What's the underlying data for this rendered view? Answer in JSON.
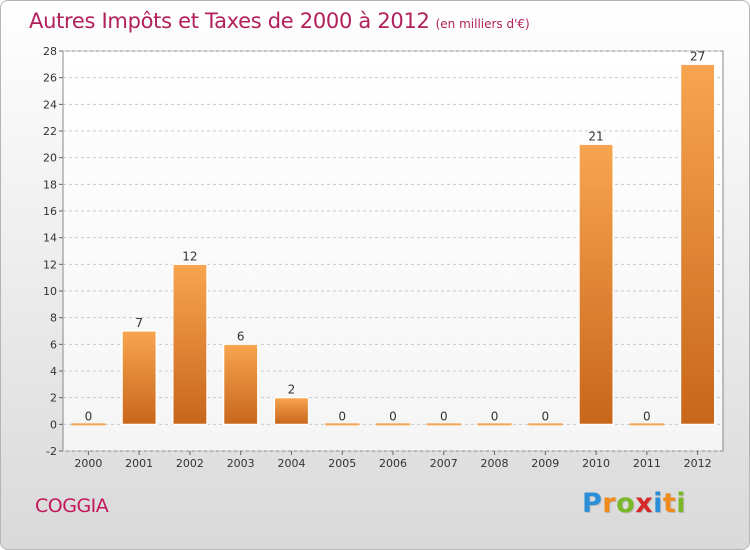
{
  "chart_data": {
    "type": "bar",
    "title": "Autres Impôts et Taxes de 2000 à 2012",
    "subtitle": "(en milliers d'€)",
    "categories": [
      "2000",
      "2001",
      "2002",
      "2003",
      "2004",
      "2005",
      "2006",
      "2007",
      "2008",
      "2009",
      "2010",
      "2011",
      "2012"
    ],
    "values": [
      0,
      7,
      12,
      6,
      2,
      0,
      0,
      0,
      0,
      0,
      21,
      0,
      27
    ],
    "data_labels": [
      "0",
      "7",
      "12",
      "6",
      "2",
      "0",
      "0",
      "0",
      "0",
      "0",
      "21",
      "0",
      "27"
    ],
    "ylim": [
      -2,
      28
    ],
    "yticks": [
      -2,
      0,
      2,
      4,
      6,
      8,
      10,
      12,
      14,
      16,
      18,
      20,
      22,
      24,
      26,
      28
    ],
    "grid": true,
    "bar_color_top": "#f7a550",
    "bar_color_bottom": "#c8661a"
  },
  "commune": "COGGIA",
  "logo": {
    "letters": [
      "P",
      "r",
      "o",
      "x",
      "i",
      "t",
      "i"
    ],
    "colors": [
      "#2a8fd6",
      "#f08a1c",
      "#7ab829",
      "#d62a2a",
      "#2a8fd6",
      "#f08a1c",
      "#7ab829"
    ]
  }
}
